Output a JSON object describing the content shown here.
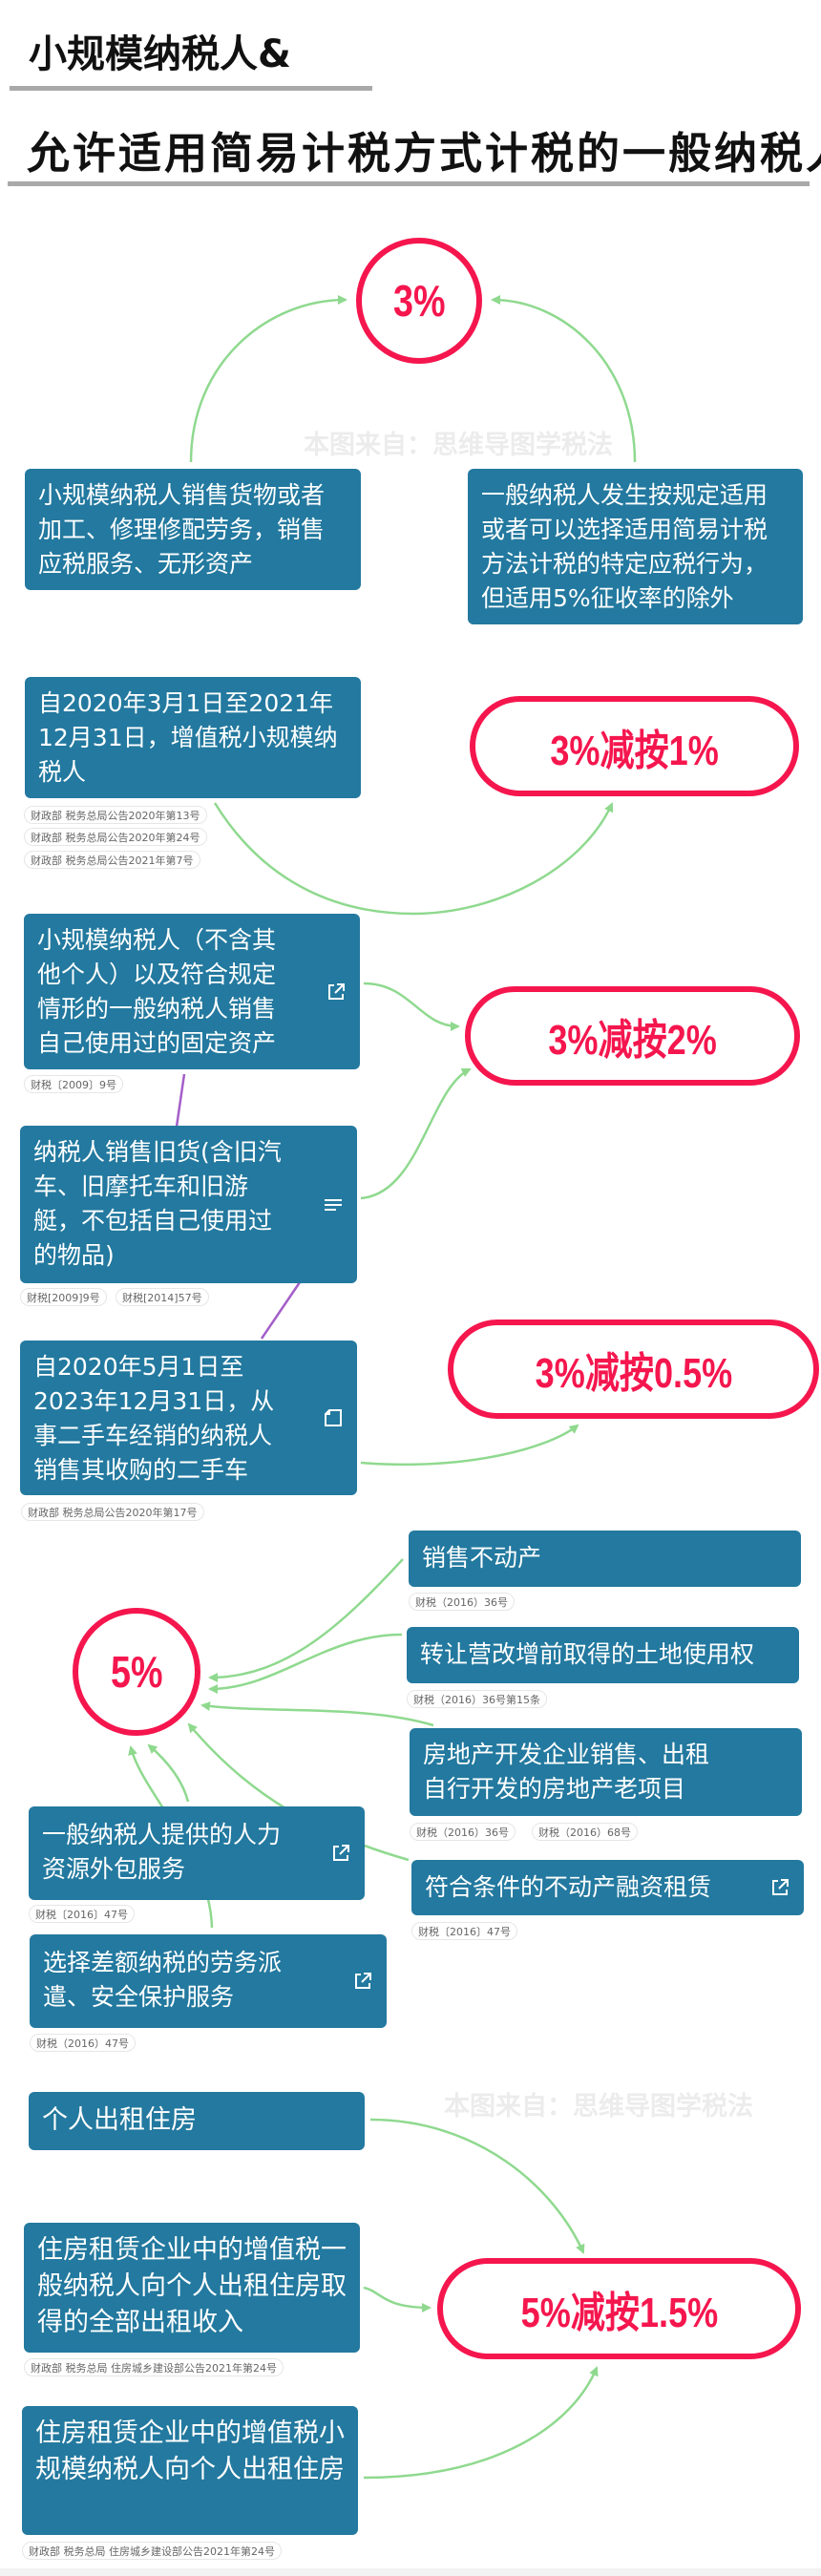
{
  "header": {
    "title_line1": "小规模纳税人&",
    "title_line2": "允许适用简易计税方式计税的一般纳税人"
  },
  "watermark": "本图来自：思维导图学税法",
  "colors": {
    "box": "#23799f",
    "rate_border": "#f5164e",
    "arrow": "#8fd98f",
    "connector": "#a45ec9"
  },
  "section_3pct": {
    "rate": "3%",
    "left": "小规模纳税人销售货物或者加工、修理修配劳务，销售应税服务、无形资产",
    "right": "一般纳税人发生按规定适用或者可以选择适用简易计税方法计税的特定应税行为，但适用5%征收率的除外"
  },
  "reductions_3pct": {
    "rate_1": "3%减按1%",
    "rate_2": "3%减按2%",
    "rate_05": "3%减按0.5%",
    "items": [
      {
        "text": "自2020年3月1日至2021年12月31日，增值税小规模纳税人",
        "refs": [
          "财政部  税务总局公告2020年第13号",
          "财政部 税务总局公告2020年第24号",
          "财政部 税务总局公告2021年第7号"
        ]
      },
      {
        "text": "小规模纳税人（不含其他个人）以及符合规定情形的一般纳税人销售自己使用过的固定资产",
        "icon": "external-link-icon",
        "refs": [
          "财税〔2009〕9号"
        ]
      },
      {
        "text": "纳税人销售旧货(含旧汽车、旧摩托车和旧游艇，不包括自己使用过的物品)",
        "icon": "notes-icon",
        "refs": [
          "财税[2009]9号",
          "财税[2014]57号"
        ]
      },
      {
        "text": "自2020年5月1日至2023年12月31日，从事二手车经销的纳税人销售其收购的二手车",
        "icon": "note-icon",
        "refs": [
          "财政部 税务总局公告2020年第17号"
        ]
      }
    ]
  },
  "section_5pct": {
    "rate": "5%",
    "items": [
      {
        "text": "销售不动产",
        "refs": [
          "财税（2016）36号"
        ]
      },
      {
        "text": "转让营改增前取得的土地使用权",
        "refs": [
          "财税（2016）36号第15条"
        ]
      },
      {
        "text": "房地产开发企业销售、出租自行开发的房地产老项目",
        "refs": [
          "财税（2016）36号",
          "财税（2016）68号"
        ]
      },
      {
        "text": "符合条件的不动产融资租赁",
        "icon": "external-link-icon",
        "refs": [
          "财税〔2016〕47号"
        ]
      },
      {
        "text": "一般纳税人提供的人力资源外包服务",
        "icon": "external-link-icon",
        "refs": [
          "财税〔2016〕47号"
        ]
      },
      {
        "text": "选择差额纳税的劳务派遣、安全保护服务",
        "icon": "external-link-icon",
        "refs": [
          "财税（2016）47号"
        ]
      }
    ]
  },
  "section_15pct": {
    "rate": "5%减按1.5%",
    "items": [
      {
        "text": "个人出租住房"
      },
      {
        "text": "住房租赁企业中的增值税一般纳税人向个人出租住房取得的全部出租收入",
        "refs": [
          "财政部 税务总局 住房城乡建设部公告2021年第24号"
        ]
      },
      {
        "text": "住房租赁企业中的增值税小规模纳税人向个人出租住房",
        "refs": [
          "财政部 税务总局 住房城乡建设部公告2021年第24号"
        ]
      }
    ]
  }
}
